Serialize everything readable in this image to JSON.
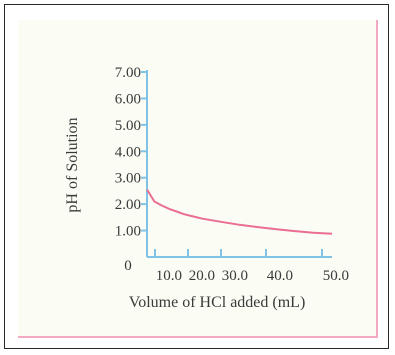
{
  "chart_data": {
    "type": "line",
    "xlabel": "Volume of HCl added (mL)",
    "ylabel": "pH of Solution",
    "x_tick_labels": [
      "10.0",
      "20.0",
      "30.0",
      "40.0",
      "50.0"
    ],
    "y_tick_labels": [
      "0",
      "1.00",
      "2.00",
      "3.00",
      "4.00",
      "5.00",
      "6.00",
      "7.00"
    ],
    "xlim": [
      0,
      50
    ],
    "ylim": [
      0,
      7
    ],
    "grid": false,
    "series": [
      {
        "color": "#ea6e93",
        "x": [
          0,
          2,
          4,
          6,
          8,
          10,
          12,
          15,
          20,
          25,
          30,
          35,
          40,
          45,
          50
        ],
        "y": [
          2.55,
          2.1,
          1.95,
          1.82,
          1.72,
          1.62,
          1.55,
          1.45,
          1.33,
          1.22,
          1.13,
          1.05,
          0.98,
          0.92,
          0.88
        ]
      }
    ]
  }
}
